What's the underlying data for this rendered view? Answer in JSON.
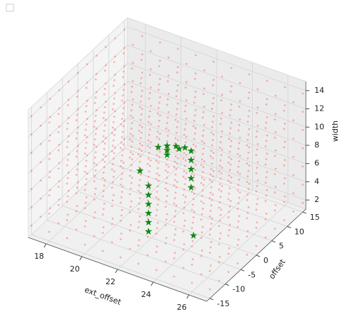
{
  "chart_data": {
    "type": "scatter3d",
    "xlabel": "ext_offset",
    "ylabel": "offset",
    "zlabel": "width",
    "xlim": [
      17,
      27
    ],
    "ylim": [
      -16,
      16
    ],
    "zlim": [
      1,
      15
    ],
    "xticks": [
      18,
      20,
      22,
      24,
      26
    ],
    "yticks": [
      -15,
      -10,
      -5,
      0,
      5,
      10,
      15
    ],
    "zticks": [
      2,
      4,
      6,
      8,
      10,
      12,
      14
    ],
    "grid": true,
    "grid_points": {
      "color": "#ff3b2f",
      "x": [
        17,
        18,
        19,
        20,
        21,
        22,
        23,
        24,
        25,
        26,
        27
      ],
      "y": [
        -15,
        -12,
        -9,
        -6,
        -3,
        0,
        3,
        6,
        9,
        12,
        15
      ],
      "z": [
        2,
        4,
        6,
        8,
        10,
        12,
        14
      ]
    },
    "stars": {
      "color": "#118811",
      "x": [
        22,
        22,
        22,
        22,
        22,
        22,
        22,
        22,
        22,
        21.5,
        22.5,
        23,
        23,
        23,
        23,
        23,
        23,
        22.5,
        21,
        24
      ],
      "y": [
        -6,
        -6,
        -6,
        -6,
        -6,
        -6,
        0,
        0,
        0,
        0,
        0,
        2,
        2,
        2,
        2,
        2,
        0,
        1,
        -3,
        -3
      ],
      "z": [
        2,
        3,
        4,
        5,
        6,
        7,
        9,
        9.5,
        8.5,
        9,
        9.8,
        9,
        8,
        7,
        6,
        5,
        10,
        9.2,
        7,
        2
      ]
    }
  }
}
